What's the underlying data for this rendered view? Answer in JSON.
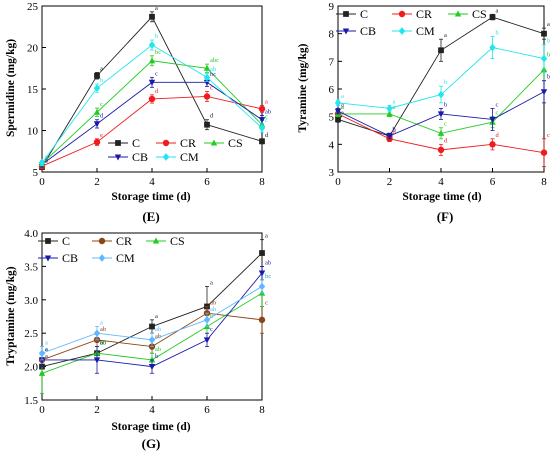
{
  "chart_data": [
    {
      "type": "line",
      "panel_label": "(E)",
      "xlabel": "Storage time (d)",
      "ylabel": "Spermidine (mg/kg)",
      "x": [
        0,
        2,
        4,
        6,
        8
      ],
      "xlim": [
        0,
        8
      ],
      "ylim": [
        5,
        25
      ],
      "xticks": [
        0,
        2,
        4,
        6,
        8
      ],
      "yticks": [
        5,
        10,
        15,
        20,
        25
      ],
      "legend_position": "bottom-center",
      "series": [
        {
          "name": "C",
          "color": "#222222",
          "marker": "square",
          "values": [
            5.6,
            16.6,
            23.7,
            10.7,
            8.7
          ],
          "errors": [
            0.3,
            0.4,
            0.6,
            0.6,
            0.3
          ],
          "labels": [
            "a",
            "a",
            "a",
            "d",
            "d"
          ]
        },
        {
          "name": "CR",
          "color": "#ee1c1c",
          "marker": "circle",
          "values": [
            5.7,
            8.6,
            13.8,
            14.1,
            12.6
          ],
          "errors": [
            0.3,
            0.4,
            0.5,
            0.6,
            0.4
          ],
          "labels": [
            "a",
            "e",
            "d",
            "c",
            "a"
          ]
        },
        {
          "name": "CS",
          "color": "#22cc22",
          "marker": "triangle-up",
          "values": [
            6.0,
            12.2,
            18.4,
            17.5,
            10.7
          ],
          "errors": [
            0.3,
            0.5,
            0.6,
            0.5,
            0.5
          ],
          "labels": [
            "a",
            "c",
            "bc",
            "abc",
            "c"
          ]
        },
        {
          "name": "CB",
          "color": "#1a1aaa",
          "marker": "triangle-down",
          "values": [
            5.9,
            10.8,
            15.8,
            15.8,
            11.3
          ],
          "errors": [
            0.3,
            0.5,
            0.6,
            0.5,
            0.5
          ],
          "labels": [
            "a",
            "d",
            "c",
            "bc",
            "ab"
          ]
        },
        {
          "name": "CM",
          "color": "#22e6ee",
          "marker": "diamond",
          "values": [
            6.1,
            15.1,
            20.3,
            16.4,
            10.3
          ],
          "errors": [
            0.3,
            0.5,
            0.6,
            0.5,
            0.5
          ],
          "labels": [
            "a",
            "b",
            "b",
            "ab",
            "c"
          ]
        }
      ]
    },
    {
      "type": "line",
      "panel_label": "(F)",
      "xlabel": "Storage time (d)",
      "ylabel": "Tyramine (mg/kg)",
      "x": [
        0,
        2,
        4,
        6,
        8
      ],
      "xlim": [
        0,
        8
      ],
      "ylim": [
        3,
        9
      ],
      "xticks": [
        0,
        2,
        4,
        6,
        8
      ],
      "yticks": [
        3,
        4,
        5,
        6,
        7,
        8,
        9
      ],
      "legend_position": "top-left",
      "series": [
        {
          "name": "C",
          "color": "#222222",
          "marker": "square",
          "values": [
            4.9,
            4.3,
            7.4,
            8.6,
            8.0
          ],
          "errors": [
            0.1,
            0.1,
            0.4,
            0.1,
            0.2
          ],
          "labels": [
            "a",
            "b",
            "a",
            "a",
            "a"
          ]
        },
        {
          "name": "CR",
          "color": "#ee1c1c",
          "marker": "circle",
          "values": [
            5.1,
            4.2,
            3.8,
            4.0,
            3.7
          ],
          "errors": [
            0.1,
            0.1,
            0.2,
            0.2,
            0.5
          ],
          "labels": [
            "a",
            "b",
            "d",
            "d",
            "c"
          ]
        },
        {
          "name": "CS",
          "color": "#22cc22",
          "marker": "triangle-up",
          "values": [
            5.1,
            5.1,
            4.4,
            4.8,
            6.7
          ],
          "errors": [
            0.1,
            0.1,
            0.2,
            0.2,
            0.4
          ],
          "labels": [
            "a",
            "a",
            "c",
            "c",
            "bc"
          ]
        },
        {
          "name": "CB",
          "color": "#1a1aaa",
          "marker": "triangle-down",
          "values": [
            5.2,
            4.3,
            5.1,
            4.9,
            5.9
          ],
          "errors": [
            0.1,
            0.1,
            0.2,
            0.4,
            0.4
          ],
          "labels": [
            "a",
            "b",
            "b",
            "c",
            "b"
          ]
        },
        {
          "name": "CM",
          "color": "#22e6ee",
          "marker": "diamond",
          "values": [
            5.5,
            5.3,
            5.8,
            7.5,
            7.1
          ],
          "errors": [
            0.1,
            0.1,
            0.3,
            0.4,
            0.5
          ],
          "labels": [
            "a",
            "a",
            "b",
            "b",
            "b"
          ]
        }
      ]
    },
    {
      "type": "line",
      "panel_label": "(G)",
      "xlabel": "Storage time (d)",
      "ylabel": "Tryptamine (mg/kg)",
      "x": [
        0,
        2,
        4,
        6,
        8
      ],
      "xlim": [
        0,
        8
      ],
      "ylim": [
        1.5,
        4.0
      ],
      "xticks": [
        0,
        2,
        4,
        6,
        8
      ],
      "yticks": [
        1.5,
        2.0,
        2.5,
        3.0,
        3.5,
        4.0
      ],
      "legend_position": "top-left",
      "series": [
        {
          "name": "C",
          "color": "#222222",
          "marker": "square",
          "values": [
            2.0,
            2.2,
            2.6,
            2.9,
            3.7
          ],
          "errors": [
            0.1,
            0.1,
            0.1,
            0.3,
            0.2
          ],
          "labels": [
            "a",
            "ab",
            "a",
            "a",
            "a"
          ]
        },
        {
          "name": "CR",
          "color": "#8b4513",
          "marker": "circle",
          "values": [
            2.1,
            2.4,
            2.3,
            2.8,
            2.7
          ],
          "errors": [
            0.1,
            0.1,
            0.1,
            0.1,
            0.2
          ],
          "labels": [
            "a",
            "ab",
            "ab",
            "ab",
            "c"
          ]
        },
        {
          "name": "CS",
          "color": "#22cc22",
          "marker": "triangle-up",
          "values": [
            1.9,
            2.2,
            2.1,
            2.6,
            3.1
          ],
          "errors": [
            0.3,
            0.1,
            0.1,
            0.1,
            0.2
          ],
          "labels": [
            "a",
            "ab",
            "ab",
            "b",
            "bc"
          ]
        },
        {
          "name": "CB",
          "color": "#1a1aaa",
          "marker": "triangle-down",
          "values": [
            2.1,
            2.1,
            2.0,
            2.4,
            3.4
          ],
          "errors": [
            0.1,
            0.2,
            0.1,
            0.1,
            0.1
          ],
          "labels": [
            "a",
            "b",
            "b",
            "c",
            "ab"
          ]
        },
        {
          "name": "CM",
          "color": "#5fb8ff",
          "marker": "diamond",
          "values": [
            2.2,
            2.5,
            2.4,
            2.7,
            3.2
          ],
          "errors": [
            0.1,
            0.1,
            0.1,
            0.1,
            0.1
          ],
          "labels": [
            "a",
            "a",
            "ab",
            "ab",
            "bc"
          ]
        }
      ]
    }
  ]
}
